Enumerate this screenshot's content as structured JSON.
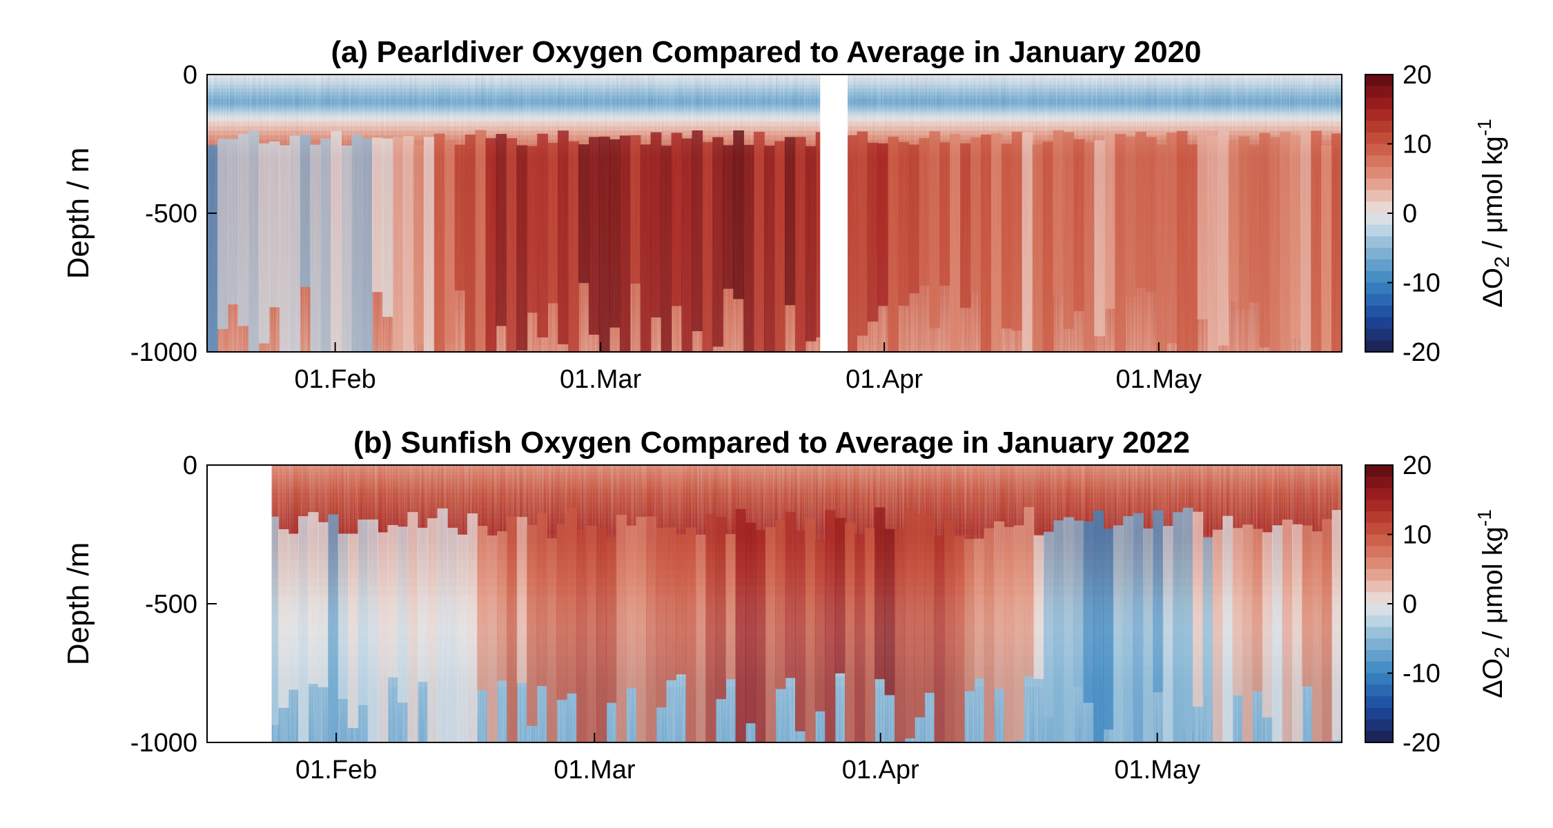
{
  "chart_data": [
    {
      "type": "heatmap",
      "title": "(a) Pearldiver Oxygen Compared to Average in January  2020",
      "xlabel": "",
      "ylabel": "Depth / m",
      "x_range": [
        "2020-01-18",
        "2020-05-21"
      ],
      "ylim": [
        -1000,
        0
      ],
      "x_ticks": [
        {
          "date": "2020-02-01",
          "label": "01.Feb"
        },
        {
          "date": "2020-03-01",
          "label": "01.Mar"
        },
        {
          "date": "2020-04-01",
          "label": "01.Apr"
        },
        {
          "date": "2020-05-01",
          "label": "01.May"
        }
      ],
      "y_ticks": [
        {
          "value": 0,
          "label": "0"
        },
        {
          "value": -500,
          "label": "-500"
        },
        {
          "value": -1000,
          "label": "-1000"
        }
      ],
      "colorbar": {
        "label_main": "ΔO",
        "label_sub": "2",
        "label_rest": " / μmol kg",
        "label_sup": "-1",
        "range": [
          -20,
          20
        ],
        "ticks": [
          {
            "value": 20,
            "label": "20"
          },
          {
            "value": 10,
            "label": "10"
          },
          {
            "value": 0,
            "label": "0"
          },
          {
            "value": -10,
            "label": "-10"
          },
          {
            "value": -20,
            "label": "-20"
          }
        ],
        "colormap": "blue-white-red diverging"
      },
      "data_gaps": [
        {
          "start": "2020-03-25",
          "end": "2020-03-28",
          "depth_from": 0,
          "depth_to": -1000
        }
      ],
      "vertical_profile": [
        {
          "depth": 0,
          "anomaly": 0
        },
        {
          "depth": -100,
          "anomaly": -7
        },
        {
          "depth": -170,
          "anomaly": 1
        },
        {
          "depth": -300,
          "anomaly": 11
        },
        {
          "depth": -500,
          "anomaly": 10
        },
        {
          "depth": -800,
          "anomaly": 8
        },
        {
          "depth": -1000,
          "anomaly": 6
        }
      ],
      "time_series_notes": [
        {
          "date": "2020-01-25",
          "deep_anomaly": -5
        },
        {
          "date": "2020-02-05",
          "deep_anomaly": -3
        },
        {
          "date": "2020-02-20",
          "deep_anomaly": 16
        },
        {
          "date": "2020-03-05",
          "deep_anomaly": 15
        },
        {
          "date": "2020-03-18",
          "deep_anomaly": 16
        },
        {
          "date": "2020-04-15",
          "deep_anomaly": 6
        },
        {
          "date": "2020-05-10",
          "deep_anomaly": 6
        }
      ]
    },
    {
      "type": "heatmap",
      "title": "(b) Sunfish Oxygen Compared to Average in January 2022",
      "xlabel": "",
      "ylabel": "Depth /m",
      "x_range": [
        "2022-01-18",
        "2022-05-21"
      ],
      "ylim": [
        -1000,
        0
      ],
      "x_ticks": [
        {
          "date": "2022-02-01",
          "label": "01.Feb"
        },
        {
          "date": "2022-03-01",
          "label": "01.Mar"
        },
        {
          "date": "2022-04-01",
          "label": "01.Apr"
        },
        {
          "date": "2022-05-01",
          "label": "01.May"
        }
      ],
      "y_ticks": [
        {
          "value": 0,
          "label": "0"
        },
        {
          "value": -500,
          "label": "-500"
        },
        {
          "value": -1000,
          "label": "-1000"
        }
      ],
      "colorbar": {
        "label_main": "ΔO",
        "label_sub": "2",
        "label_rest": " / μmol kg",
        "label_sup": "-1",
        "range": [
          -20,
          20
        ],
        "ticks": [
          {
            "value": 20,
            "label": "20"
          },
          {
            "value": 10,
            "label": "10"
          },
          {
            "value": 0,
            "label": "0"
          },
          {
            "value": -10,
            "label": "-10"
          },
          {
            "value": -20,
            "label": "-20"
          }
        ],
        "colormap": "blue-white-red diverging"
      },
      "data_gaps": [
        {
          "start": "2022-01-18",
          "end": "2022-01-25",
          "depth_from": 0,
          "depth_to": -1000
        }
      ],
      "vertical_profile": [
        {
          "depth": 0,
          "anomaly": 6
        },
        {
          "depth": -100,
          "anomaly": 10
        },
        {
          "depth": -250,
          "anomaly": 14
        },
        {
          "depth": -500,
          "anomaly": 2
        },
        {
          "depth": -800,
          "anomaly": -5
        },
        {
          "depth": -1000,
          "anomaly": -6
        }
      ],
      "time_series_notes": [
        {
          "date": "2022-02-01",
          "deep_anomaly": -3
        },
        {
          "date": "2022-02-25",
          "deep_anomaly": 8
        },
        {
          "date": "2022-03-20",
          "deep_anomaly": 12
        },
        {
          "date": "2022-04-05",
          "deep_anomaly": 14
        },
        {
          "date": "2022-04-25",
          "deep_anomaly": -8
        },
        {
          "date": "2022-05-15",
          "deep_anomaly": 4
        }
      ]
    }
  ]
}
